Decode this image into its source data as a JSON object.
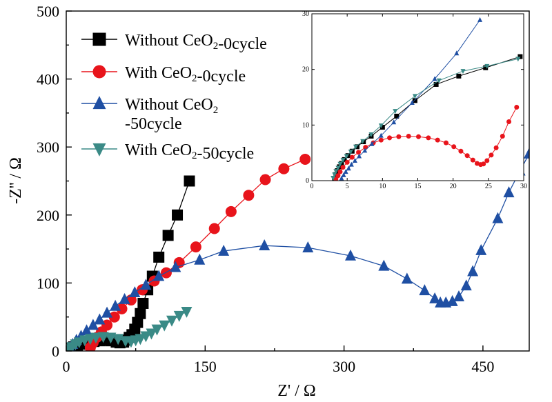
{
  "chart_data": [
    {
      "type": "scatter",
      "xlabel": "Z' / Ω",
      "ylabel": "-Z'' / Ω",
      "xlim": [
        0,
        500
      ],
      "ylim": [
        0,
        500
      ],
      "xticks": [
        0,
        150,
        300,
        450
      ],
      "yticks": [
        0,
        100,
        200,
        300,
        400,
        500
      ],
      "legend_position": "top-left",
      "series": [
        {
          "name": "Without CeO₂-0cycle",
          "color": "#000000",
          "marker": "square",
          "x": [
            2,
            5,
            8,
            12,
            16,
            20,
            25,
            30,
            36,
            42,
            48,
            54,
            58,
            62,
            65,
            68,
            71,
            74,
            77,
            80,
            83,
            88,
            93,
            100,
            110,
            120,
            133
          ],
          "y": [
            2,
            4,
            6,
            8,
            10,
            12,
            13,
            14,
            15,
            16,
            15,
            13,
            12,
            13,
            16,
            20,
            24,
            32,
            42,
            55,
            70,
            90,
            110,
            138,
            170,
            200,
            250
          ]
        },
        {
          "name": "With CeO₂-0cycle",
          "color": "#e8141b",
          "marker": "circle",
          "x": [
            26,
            29,
            33,
            38,
            44,
            52,
            60,
            70,
            82,
            95,
            108,
            122,
            140,
            160,
            178,
            197,
            215,
            235,
            258
          ],
          "y": [
            5,
            12,
            20,
            28,
            38,
            50,
            62,
            75,
            90,
            103,
            115,
            130,
            153,
            180,
            205,
            229,
            252,
            268,
            282
          ]
        },
        {
          "name": "Without CeO₂\n-50cycle",
          "color": "#1f4fa3",
          "marker": "triangle-up",
          "x": [
            4,
            7,
            11,
            16,
            22,
            29,
            36,
            44,
            53,
            63,
            74,
            86,
            100,
            118,
            144,
            170,
            214,
            261,
            307,
            343,
            368,
            387,
            398,
            404,
            410,
            417,
            424,
            432,
            439,
            448,
            466,
            478,
            490,
            500
          ],
          "y": [
            5,
            10,
            16,
            22,
            30,
            38,
            46,
            56,
            66,
            76,
            86,
            97,
            110,
            123,
            134,
            147,
            155,
            152,
            140,
            125,
            106,
            89,
            77,
            71,
            71,
            73,
            80,
            96,
            117,
            148,
            195,
            233,
            265,
            290
          ]
        },
        {
          "name": "With CeO₂-50cycle",
          "color": "#3a8a86",
          "marker": "triangle-down",
          "x": [
            3,
            6,
            10,
            14,
            20,
            26,
            32,
            40,
            48,
            56,
            64,
            70,
            75,
            80,
            86,
            92,
            98,
            106,
            114,
            122,
            130
          ],
          "y": [
            3,
            6,
            10,
            13,
            16,
            18,
            20,
            21,
            20,
            18,
            15,
            14,
            16,
            18,
            22,
            26,
            32,
            38,
            45,
            52,
            58
          ]
        }
      ]
    },
    {
      "type": "scatter",
      "xlim": [
        0,
        30
      ],
      "ylim": [
        0,
        30
      ],
      "xticks": [
        0,
        5,
        10,
        15,
        20,
        25,
        30
      ],
      "yticks": [
        0,
        10,
        20,
        30
      ],
      "series": [
        {
          "name": "Without CeO₂-0cycle",
          "color": "#000000",
          "marker": "square",
          "x": [
            3.2,
            3.4,
            3.6,
            3.9,
            4.2,
            4.6,
            5.1,
            5.7,
            6.4,
            7.3,
            8.4,
            10,
            12,
            14.6,
            17.6,
            20.8,
            24.6,
            29.5
          ],
          "y": [
            0.4,
            1.1,
            1.8,
            2.5,
            3.1,
            3.8,
            4.5,
            5.3,
            6.1,
            7,
            8,
            9.6,
            11.6,
            14.4,
            17.3,
            18.8,
            20.3,
            22.3
          ]
        },
        {
          "name": "With CeO₂-0cycle",
          "color": "#e8141b",
          "marker": "circle",
          "x": [
            3.4,
            3.7,
            4,
            4.4,
            5,
            5.7,
            6.6,
            7.6,
            8.7,
            9.8,
            11,
            12.3,
            13.7,
            15.1,
            16.5,
            17.8,
            19,
            20.1,
            21.1,
            22,
            22.8,
            23.4,
            23.9,
            24.3,
            24.8,
            25.4,
            26.1,
            27,
            27.9,
            29
          ],
          "y": [
            0.3,
            0.9,
            1.6,
            2.4,
            3.3,
            4.2,
            5.1,
            6,
            6.8,
            7.3,
            7.7,
            7.9,
            8,
            7.9,
            7.7,
            7.3,
            6.8,
            6.1,
            5.3,
            4.5,
            3.7,
            3.1,
            2.9,
            3,
            3.6,
            4.6,
            5.9,
            8,
            10.6,
            13.2
          ]
        },
        {
          "name": "Without CeO₂\n-50cycle",
          "color": "#1f4fa3",
          "marker": "triangle-up",
          "x": [
            4.2,
            4.5,
            4.8,
            5.2,
            5.6,
            6.1,
            6.7,
            7.5,
            8.5,
            9.8,
            11.6,
            14.2,
            17.4,
            20.5,
            23.8
          ],
          "y": [
            0.4,
            1,
            1.6,
            2.2,
            2.9,
            3.6,
            4.4,
            5.4,
            6.6,
            8.1,
            10.5,
            14,
            18.3,
            22.9,
            28.9
          ]
        },
        {
          "name": "With CeO₂-50cycle",
          "color": "#3a8a86",
          "marker": "triangle-down",
          "x": [
            3,
            3.2,
            3.4,
            3.7,
            4,
            4.4,
            4.9,
            5.5,
            6.2,
            7.2,
            8.4,
            9.8,
            11.8,
            14.6,
            18,
            21.4,
            24.8,
            29.2
          ],
          "y": [
            0.5,
            1.1,
            1.7,
            2.3,
            3,
            3.7,
            4.4,
            5.2,
            6.1,
            7.1,
            8.3,
            9.9,
            12.5,
            15.2,
            18,
            19.7,
            20.6,
            21.9
          ]
        }
      ]
    }
  ]
}
